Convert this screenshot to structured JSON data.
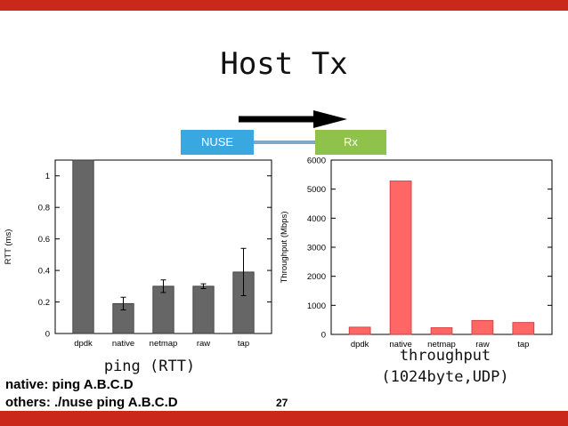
{
  "slide": {
    "title": "Host Tx",
    "nuse_label": "NUSE",
    "rx_label": "Rx",
    "left_caption": "ping (RTT)",
    "right_caption_line1": "throughput",
    "right_caption_line2": "(1024byte,UDP)",
    "note_line1": "native: ping A.B.C.D",
    "note_line2": "others: ./nuse ping A.B.C.D",
    "page_number": "27",
    "accent_color": "#c9281a"
  },
  "chart_data": [
    {
      "type": "bar",
      "categories": [
        "dpdk",
        "native",
        "netmap",
        "raw",
        "tap"
      ],
      "values": [
        1.1,
        0.19,
        0.3,
        0.3,
        0.39
      ],
      "errors": [
        0.0,
        0.04,
        0.04,
        0.015,
        0.15
      ],
      "ylabel": "RTT (ms)",
      "ylim": [
        0,
        1.1
      ],
      "yticks": [
        "0",
        "0.2",
        "0.4",
        "0.6",
        "0.8",
        "1"
      ],
      "bar_color": "#666666"
    },
    {
      "type": "bar",
      "categories": [
        "dpdk",
        "native",
        "netmap",
        "raw",
        "tap"
      ],
      "values": [
        250,
        5280,
        230,
        480,
        410
      ],
      "ylabel": "Throughput (Mbps)",
      "ylim": [
        0,
        6000
      ],
      "yticks": [
        "0",
        "1000",
        "2000",
        "3000",
        "4000",
        "5000",
        "6000"
      ],
      "bar_color": "#ff6666"
    }
  ]
}
